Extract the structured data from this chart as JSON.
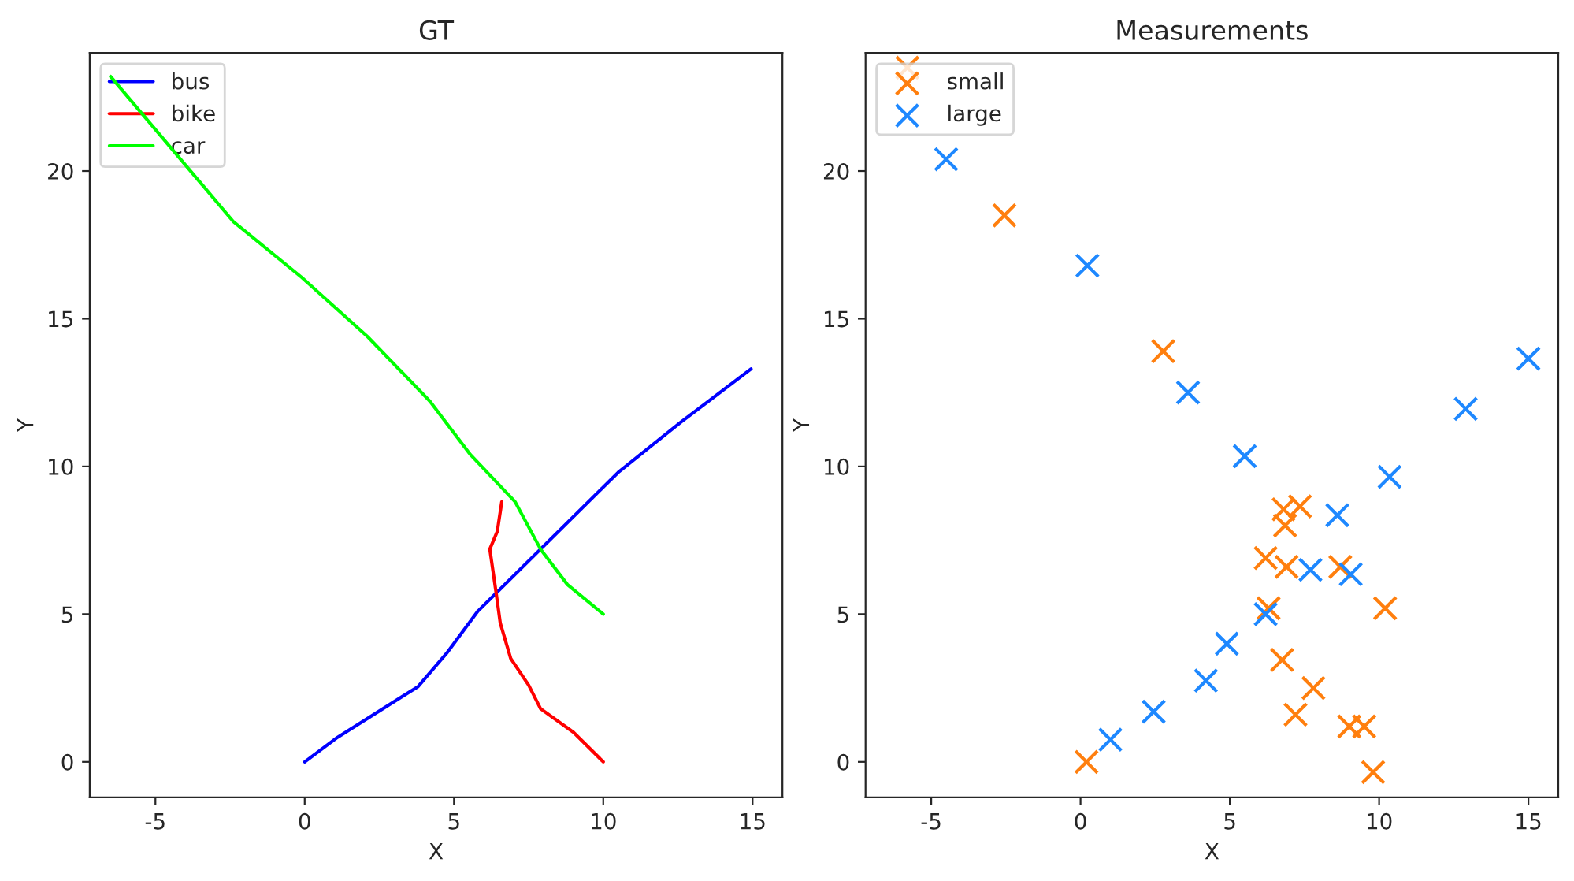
{
  "chart_data": [
    {
      "type": "line",
      "title": "GT",
      "xlabel": "X",
      "ylabel": "Y",
      "xlim": [
        -7.2,
        16.0
      ],
      "ylim": [
        -1.2,
        24.0
      ],
      "xticks": [
        -5,
        0,
        5,
        10,
        15
      ],
      "yticks": [
        0,
        5,
        10,
        15,
        20
      ],
      "legend": "top left",
      "grid": false,
      "marker": "none",
      "line_style": "solid",
      "series": [
        {
          "name": "bus",
          "color": "#0000ff",
          "x": [
            0,
            1.1,
            3.8,
            4.75,
            5.8,
            10.5,
            12.6,
            14.95
          ],
          "values": [
            0,
            0.83,
            2.55,
            3.67,
            5.1,
            9.8,
            11.5,
            13.3
          ]
        },
        {
          "name": "bike",
          "color": "#ff0000",
          "x": [
            10,
            9.0,
            7.9,
            7.5,
            6.9,
            6.55,
            6.4,
            6.2,
            6.45,
            6.6
          ],
          "values": [
            0,
            1.0,
            1.8,
            2.6,
            3.5,
            4.7,
            5.8,
            7.2,
            7.8,
            8.8
          ]
        },
        {
          "name": "car",
          "color": "#00ff00",
          "x": [
            -6.5,
            -2.4,
            -0.1,
            2.1,
            4.2,
            5.55,
            7.05,
            7.9,
            8.8,
            10.0
          ],
          "values": [
            23.2,
            18.3,
            16.4,
            14.4,
            12.2,
            10.4,
            8.8,
            7.2,
            6.0,
            5.0
          ]
        }
      ]
    },
    {
      "type": "scatter",
      "title": "Measurements",
      "xlabel": "X",
      "ylabel": "Y",
      "xlim": [
        -7.2,
        16.0
      ],
      "ylim": [
        -1.2,
        24.0
      ],
      "xticks": [
        -5,
        0,
        5,
        10,
        15
      ],
      "yticks": [
        0,
        5,
        10,
        15,
        20
      ],
      "legend": "top left",
      "grid": false,
      "marker": "cross",
      "series": [
        {
          "name": "small",
          "color": "#ff7f0e",
          "x": [
            -5.8,
            -2.55,
            2.77,
            6.8,
            7.35,
            6.85,
            6.2,
            6.9,
            8.7,
            6.3,
            10.2,
            6.75,
            7.8,
            7.2,
            9.0,
            9.5,
            9.8,
            0.2
          ],
          "values": [
            23.5,
            18.5,
            13.9,
            8.55,
            8.65,
            8.0,
            6.9,
            6.6,
            6.6,
            5.2,
            5.2,
            3.45,
            2.5,
            1.6,
            1.2,
            1.2,
            -0.35,
            0
          ]
        },
        {
          "name": "large",
          "color": "#1e88ff",
          "x": [
            -4.5,
            0.23,
            3.6,
            5.5,
            10.35,
            12.9,
            15.0,
            8.6,
            7.7,
            9.05,
            6.2,
            4.9,
            4.2,
            2.45,
            1.0
          ],
          "values": [
            20.4,
            16.8,
            12.5,
            10.35,
            9.65,
            11.95,
            13.65,
            8.35,
            6.5,
            6.35,
            5.0,
            4.0,
            2.75,
            1.7,
            0.75
          ]
        }
      ]
    }
  ]
}
